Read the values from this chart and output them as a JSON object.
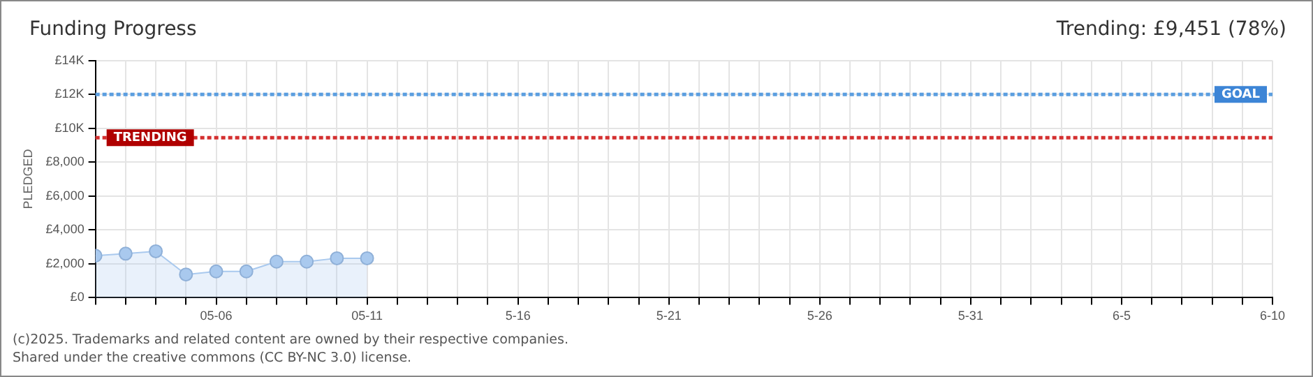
{
  "chart_data": {
    "type": "area",
    "title": "Funding Progress",
    "ylabel": "PLEDGED",
    "annotations": [
      "Trending: £9,451 (78%)",
      "(c)2025. Trademarks and related content are owned by their respective companies.",
      "Shared under the creative commons (CC BY-NC 3.0) license."
    ],
    "x": [
      "2025-05-02",
      "2025-05-03",
      "2025-05-04",
      "2025-05-05",
      "2025-05-06",
      "2025-05-07",
      "2025-05-08",
      "2025-05-09",
      "2025-05-10",
      "2025-05-11"
    ],
    "series": [
      {
        "color": "#a9c9ee",
        "values": [
          2480,
          2600,
          2740,
          1370,
          1550,
          1550,
          2130,
          2130,
          2330,
          2330
        ]
      }
    ],
    "xlim": [
      "2025-05-02",
      "2025-06-10"
    ],
    "xticks": [
      {
        "value": "2025-05-02",
        "label": null
      },
      {
        "value": "2025-05-03",
        "label": null
      },
      {
        "value": "2025-05-04",
        "label": null
      },
      {
        "value": "2025-05-05",
        "label": null
      },
      {
        "value": "2025-05-06",
        "label": "05-06"
      },
      {
        "value": "2025-05-07",
        "label": null
      },
      {
        "value": "2025-05-08",
        "label": null
      },
      {
        "value": "2025-05-09",
        "label": null
      },
      {
        "value": "2025-05-10",
        "label": null
      },
      {
        "value": "2025-05-11",
        "label": "05-11"
      },
      {
        "value": "2025-05-12",
        "label": null
      },
      {
        "value": "2025-05-13",
        "label": null
      },
      {
        "value": "2025-05-14",
        "label": null
      },
      {
        "value": "2025-05-15",
        "label": null
      },
      {
        "value": "2025-05-16",
        "label": "5-16"
      },
      {
        "value": "2025-05-17",
        "label": null
      },
      {
        "value": "2025-05-18",
        "label": null
      },
      {
        "value": "2025-05-19",
        "label": null
      },
      {
        "value": "2025-05-20",
        "label": null
      },
      {
        "value": "2025-05-21",
        "label": "5-21"
      },
      {
        "value": "2025-05-22",
        "label": null
      },
      {
        "value": "2025-05-23",
        "label": null
      },
      {
        "value": "2025-05-24",
        "label": null
      },
      {
        "value": "2025-05-25",
        "label": null
      },
      {
        "value": "2025-05-26",
        "label": "5-26"
      },
      {
        "value": "2025-05-27",
        "label": null
      },
      {
        "value": "2025-05-28",
        "label": null
      },
      {
        "value": "2025-05-29",
        "label": null
      },
      {
        "value": "2025-05-30",
        "label": null
      },
      {
        "value": "2025-05-31",
        "label": "5-31"
      },
      {
        "value": "2025-06-01",
        "label": null
      },
      {
        "value": "2025-06-02",
        "label": null
      },
      {
        "value": "2025-06-03",
        "label": null
      },
      {
        "value": "2025-06-04",
        "label": null
      },
      {
        "value": "2025-06-05",
        "label": "6-5"
      },
      {
        "value": "2025-06-06",
        "label": null
      },
      {
        "value": "2025-06-07",
        "label": null
      },
      {
        "value": "2025-06-08",
        "label": null
      },
      {
        "value": "2025-06-09",
        "label": null
      },
      {
        "value": "2025-06-10",
        "label": "6-10"
      }
    ],
    "ylim": [
      0,
      14000
    ],
    "yticks": [
      {
        "value": 0,
        "label": "£0"
      },
      {
        "value": 2000,
        "label": "£2,000"
      },
      {
        "value": 4000,
        "label": "£4,000"
      },
      {
        "value": 6000,
        "label": "£6,000"
      },
      {
        "value": 8000,
        "label": "£8,000"
      },
      {
        "value": 10000,
        "label": "£10K"
      },
      {
        "value": 12000,
        "label": "£12K"
      },
      {
        "value": 14000,
        "label": "£14K"
      }
    ],
    "ref_lines": [
      {
        "axis": "y",
        "value": 12000,
        "label": "GOAL",
        "color": "#5b9ee0",
        "line_style": "dotted"
      },
      {
        "axis": "y",
        "value": 9451,
        "label": "TRENDING",
        "color": "#d43030",
        "line_style": "dotted"
      }
    ],
    "grid": true,
    "marker": "circle",
    "legend": false
  }
}
